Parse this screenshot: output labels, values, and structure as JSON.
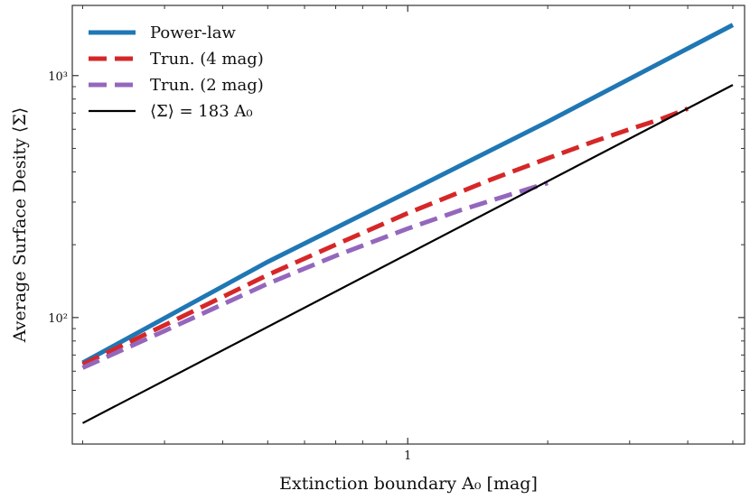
{
  "chart_data": {
    "type": "line",
    "title": "",
    "xlabel": "Extinction boundary A₀ [mag]",
    "ylabel": "Average Surface Desity ⟨Σ⟩",
    "x_scale": "log",
    "y_scale": "log",
    "xlim": [
      0.19,
      5.3
    ],
    "ylim": [
      30,
      1950
    ],
    "x_major_ticks": [
      {
        "value": 1,
        "label": "1"
      }
    ],
    "x_minor_ticks": [
      0.2,
      0.3,
      0.4,
      0.5,
      0.6,
      0.7,
      0.8,
      0.9,
      2,
      3,
      4,
      5
    ],
    "y_major_ticks": [
      {
        "value": 100,
        "label": "10²"
      },
      {
        "value": 1000,
        "label": "10³"
      }
    ],
    "y_minor_ticks": [
      40,
      50,
      60,
      70,
      80,
      90,
      200,
      300,
      400,
      500,
      600,
      700,
      800,
      900
    ],
    "grid": false,
    "legend_position": "top-left",
    "series": [
      {
        "name": "Power-law",
        "color": "#1f77b4",
        "style": "solid",
        "x": [
          0.2,
          0.5,
          1,
          2,
          5
        ],
        "y": [
          65,
          170,
          330,
          645,
          1620
        ]
      },
      {
        "name": "Trun. (4 mag)",
        "color": "#d62728",
        "style": "dashed",
        "x": [
          0.2,
          0.3,
          0.5,
          0.7,
          1.0,
          1.5,
          2.0,
          2.5,
          3.0,
          3.5,
          4.0
        ],
        "y": [
          64,
          93,
          150,
          200,
          270,
          370,
          455,
          532,
          600,
          660,
          730
        ]
      },
      {
        "name": "Trun. (2 mag)",
        "color": "#9467bd",
        "style": "dashed",
        "x": [
          0.2,
          0.3,
          0.5,
          0.7,
          1.0,
          1.3,
          1.6,
          2.0
        ],
        "y": [
          62,
          88,
          138,
          180,
          233,
          278,
          315,
          360
        ]
      },
      {
        "name": "⟨Σ⟩ = 183 A₀",
        "color": "#000000",
        "style": "solid",
        "x": [
          0.2,
          5
        ],
        "y": [
          36.6,
          915
        ]
      }
    ]
  }
}
